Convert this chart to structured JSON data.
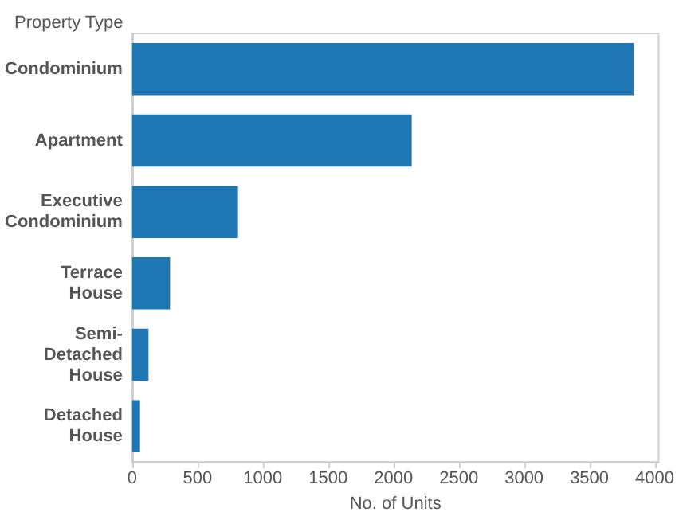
{
  "chart_data": {
    "type": "bar",
    "orientation": "horizontal",
    "ylabel": "Property Type",
    "xlabel": "No. of Units",
    "categories": [
      "Condominium",
      "Apartment",
      "Executive\nCondominium",
      "Terrace\nHouse",
      "Semi-\nDetached\nHouse",
      "Detached\nHouse"
    ],
    "values": [
      3840,
      2140,
      810,
      290,
      125,
      60
    ],
    "color": "#1f77b4",
    "xlim": [
      0,
      4030
    ],
    "xticks": [
      0,
      500,
      1000,
      1500,
      2000,
      2500,
      3000,
      3500,
      4000
    ],
    "grid": false
  }
}
